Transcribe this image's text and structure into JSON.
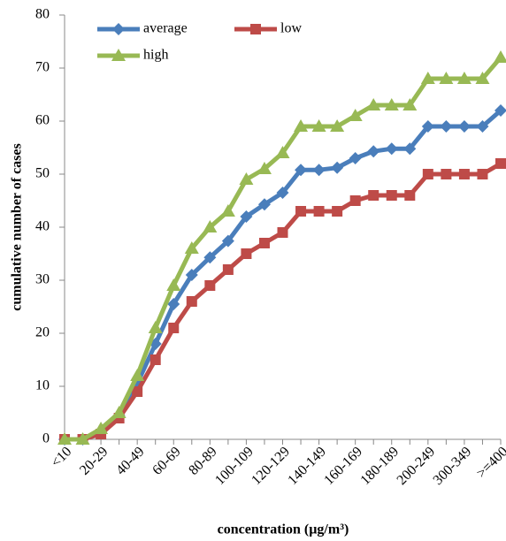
{
  "chart_data": {
    "type": "line",
    "x_label": "concentration (µg/m³)",
    "y_label": "cumulative number of cases",
    "categories": [
      "<10",
      null,
      "20-29",
      null,
      "40-49",
      null,
      "60-69",
      null,
      "80-89",
      null,
      "100-109",
      null,
      "120-129",
      null,
      "140-149",
      null,
      "160-169",
      null,
      "180-189",
      null,
      "200-249",
      null,
      "300-349",
      null,
      ">=400"
    ],
    "series": [
      {
        "name": "average",
        "color": "#4a7ebb",
        "marker": "diamond",
        "values": [
          0,
          0,
          1.5,
          4.5,
          10.5,
          18,
          25.5,
          31,
          34.3,
          37.4,
          42,
          44.3,
          46.5,
          50.8,
          50.8,
          51.2,
          53,
          54.3,
          54.8,
          54.8,
          59,
          59,
          59,
          59,
          62
        ]
      },
      {
        "name": "low",
        "color": "#be4b48",
        "marker": "square",
        "values": [
          0,
          0,
          1,
          4,
          9,
          15,
          21,
          26,
          29,
          32,
          35,
          37,
          39,
          43,
          43,
          43,
          45,
          46,
          46,
          46,
          50,
          50,
          50,
          50,
          52
        ]
      },
      {
        "name": "high",
        "color": "#98b954",
        "marker": "triangle",
        "values": [
          0,
          0,
          2,
          5,
          12,
          21,
          29,
          36,
          40,
          43,
          49,
          51,
          54,
          59,
          59,
          59,
          61,
          63,
          63,
          63,
          68,
          68,
          68,
          68,
          72
        ]
      }
    ],
    "ylim": [
      0,
      80
    ],
    "yticks": [
      0,
      10,
      20,
      30,
      40,
      50,
      60,
      70,
      80
    ],
    "legend": "upper left",
    "grid": false
  }
}
